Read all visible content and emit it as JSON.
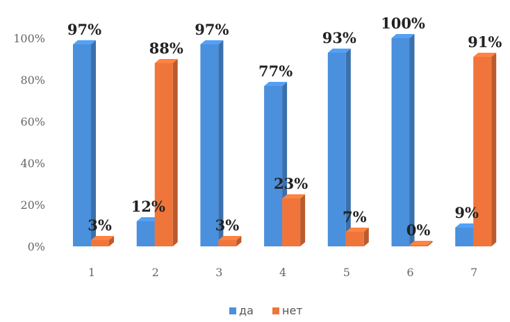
{
  "chart_data": {
    "type": "bar",
    "categories": [
      "1",
      "2",
      "3",
      "4",
      "5",
      "6",
      "7"
    ],
    "series": [
      {
        "name": "да",
        "color": "#4a90dc",
        "values": [
          97,
          12,
          97,
          77,
          93,
          100,
          9
        ]
      },
      {
        "name": "нет",
        "color": "#f0753a",
        "values": [
          3,
          88,
          3,
          23,
          7,
          0,
          91
        ]
      }
    ],
    "data_labels": {
      "да": [
        "97%",
        "12%",
        "97%",
        "77%",
        "93%",
        "100%",
        "9%"
      ],
      "нет": [
        "3%",
        "88%",
        "3%",
        "23%",
        "7%",
        "0%",
        "91%"
      ]
    },
    "y_ticks": [
      "0%",
      "20%",
      "40%",
      "60%",
      "80%",
      "100%"
    ],
    "ylim": [
      0,
      100
    ],
    "grid": false,
    "legend_position": "bottom",
    "style": "3d"
  }
}
